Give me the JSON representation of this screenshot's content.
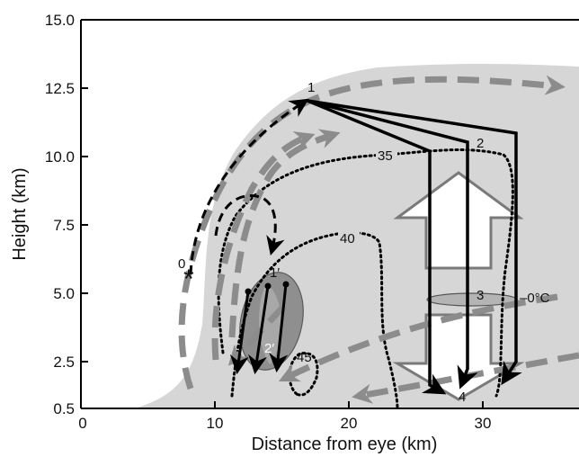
{
  "chart_data": {
    "type": "diagram",
    "xlabel": "Distance from eye (km)",
    "ylabel": "Height (km)",
    "xlim": [
      0,
      37
    ],
    "ylim": [
      0.5,
      15.0
    ],
    "x_ticks": [
      "0",
      "10",
      "20",
      "30"
    ],
    "y_ticks": [
      "0.5",
      "2.5",
      "5.0",
      "7.5",
      "10.0",
      "12.5",
      "15.0"
    ],
    "point_labels": [
      "0",
      "1",
      "1′",
      "2",
      "2′",
      "3",
      "4"
    ],
    "contour_labels": [
      "35",
      "40",
      "45"
    ],
    "freezing_level_label": "–0°C",
    "grid": false,
    "colors": {
      "cloud": "#d6d6d6",
      "flow_arrows": "#8c8c8c",
      "trajectories": "#000000",
      "big_arrows": "#ffffff"
    }
  }
}
